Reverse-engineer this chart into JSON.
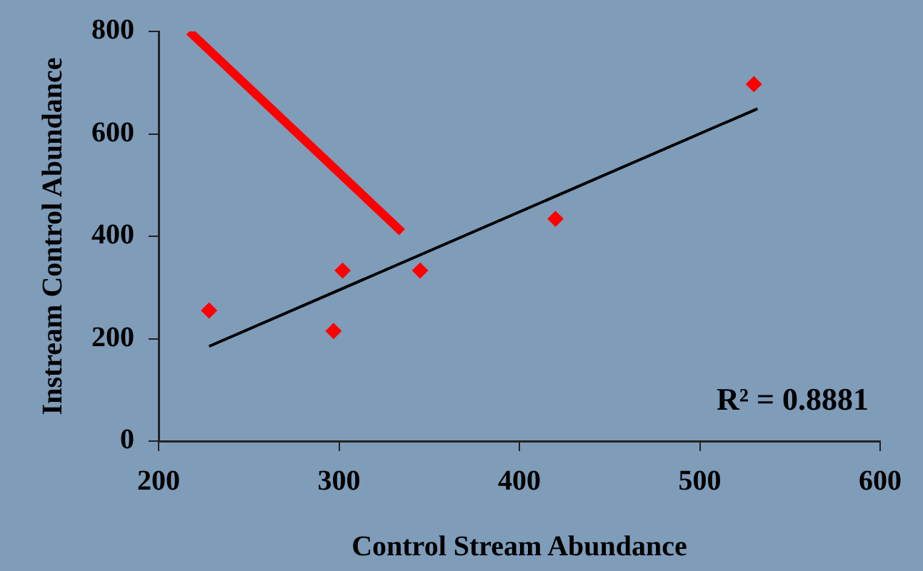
{
  "chart_data": {
    "type": "scatter",
    "xlabel": "Control Stream Abundance",
    "ylabel": "Instream Control Abundance",
    "series": [
      {
        "type": "scatter",
        "color": "#ff0000",
        "marker": "diamond",
        "x": [
          228,
          297,
          302,
          345,
          420,
          530
        ],
        "values": [
          255,
          215,
          333,
          333,
          434,
          697
        ]
      },
      {
        "type": "line",
        "color": "#000000",
        "marker": "none",
        "x": [
          228,
          532
        ],
        "values": [
          185,
          649
        ]
      },
      {
        "type": "line",
        "color": "#ff0000",
        "marker": "none",
        "x": [
          217,
          335
        ],
        "values": [
          800,
          408
        ]
      }
    ],
    "xlim": [
      200,
      600
    ],
    "xticks": [
      200,
      300,
      400,
      500,
      600
    ],
    "ylim": [
      0,
      800
    ],
    "yticks": [
      0,
      200,
      400,
      600,
      800
    ],
    "grid": false,
    "legend": false,
    "annotations": [
      "R² = 0.8881"
    ]
  }
}
